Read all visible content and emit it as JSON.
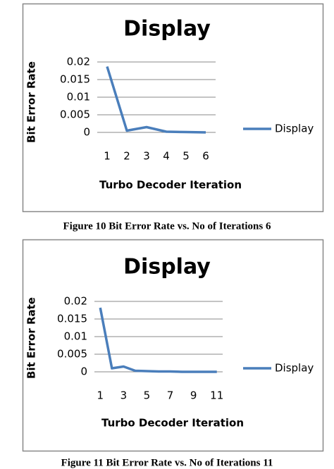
{
  "chart_data": [
    {
      "type": "line",
      "title": "Display",
      "y_label": "Bit Error Rate",
      "x_label": "Turbo Decoder Iteration",
      "caption": "Figure 10  Bit Error Rate vs. No of Iterations 6",
      "categories": [
        "1",
        "2",
        "3",
        "4",
        "5",
        "6"
      ],
      "series": [
        {
          "name": "Display",
          "color": "#4a7ebb",
          "values": [
            0.0187,
            0.0005,
            0.0015,
            0.0002,
            0.0001,
            0
          ]
        }
      ],
      "ylim": [
        0,
        0.02
      ],
      "yticks": [
        0,
        0.005,
        0.01,
        0.015,
        0.02
      ],
      "grid": true,
      "legend": "right"
    },
    {
      "type": "line",
      "title": "Display",
      "y_label": "Bit Error Rate",
      "x_label": "Turbo Decoder Iteration",
      "caption": "Figure 11  Bit Error Rate vs. No of Iterations 11",
      "categories": [
        "1",
        null,
        "3",
        null,
        "5",
        null,
        "7",
        null,
        "9",
        null,
        "11"
      ],
      "series": [
        {
          "name": "Display",
          "color": "#4a7ebb",
          "values": [
            0.0182,
            0.001,
            0.0015,
            0.0003,
            0.0002,
            0.0001,
            0.0001,
            0,
            0,
            0,
            0
          ]
        }
      ],
      "ylim": [
        0,
        0.02
      ],
      "yticks": [
        0,
        0.005,
        0.01,
        0.015,
        0.02
      ],
      "grid": true,
      "legend": "right"
    }
  ]
}
